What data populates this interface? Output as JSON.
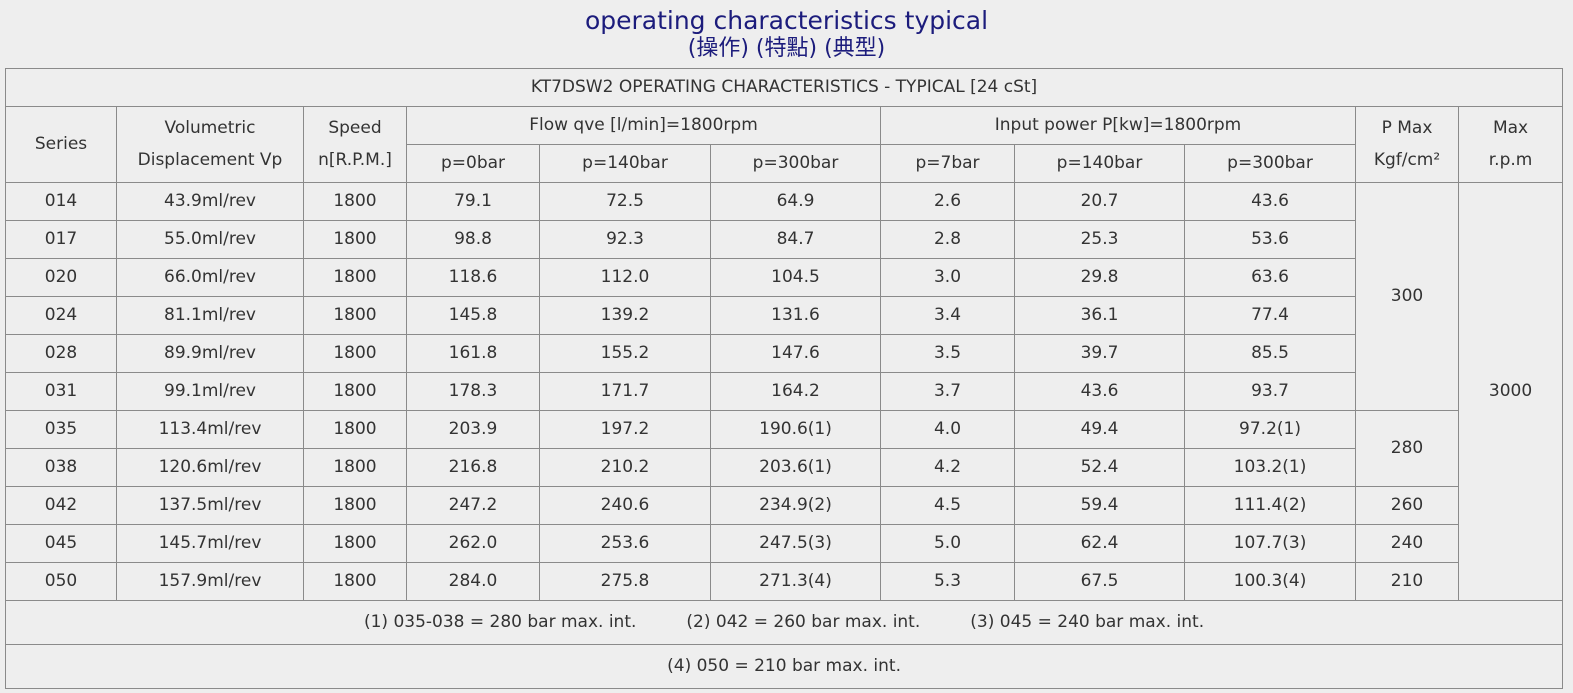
{
  "header": {
    "title": "operating characteristics typical",
    "subtitle": "(操作) (特點) (典型)"
  },
  "table": {
    "caption": "KT7DSW2 OPERATING CHARACTERISTICS - TYPICAL [24 cSt]",
    "headers": {
      "series": "Series",
      "displacement": [
        "Volumetric",
        "Displacement Vp"
      ],
      "speed": [
        "Speed",
        "n[R.P.M.]"
      ],
      "flow": "Flow qve [l/min]=1800rpm",
      "power": "Input power P[kw]=1800rpm",
      "p_max": [
        "P Max",
        "Kgf/cm²"
      ],
      "max_rpm": [
        "Max",
        "r.p.m"
      ],
      "flow_sub": [
        "p=0bar",
        "p=140bar",
        "p=300bar"
      ],
      "power_sub": [
        "p=7bar",
        "p=140bar",
        "p=300bar"
      ]
    },
    "rows": [
      [
        "014",
        "43.9ml/rev",
        "1800",
        "79.1",
        "72.5",
        "64.9",
        "2.6",
        "20.7",
        "43.6"
      ],
      [
        "017",
        "55.0ml/rev",
        "1800",
        "98.8",
        "92.3",
        "84.7",
        "2.8",
        "25.3",
        "53.6"
      ],
      [
        "020",
        "66.0ml/rev",
        "1800",
        "118.6",
        "112.0",
        "104.5",
        "3.0",
        "29.8",
        "63.6"
      ],
      [
        "024",
        "81.1ml/rev",
        "1800",
        "145.8",
        "139.2",
        "131.6",
        "3.4",
        "36.1",
        "77.4"
      ],
      [
        "028",
        "89.9ml/rev",
        "1800",
        "161.8",
        "155.2",
        "147.6",
        "3.5",
        "39.7",
        "85.5"
      ],
      [
        "031",
        "99.1ml/rev",
        "1800",
        "178.3",
        "171.7",
        "164.2",
        "3.7",
        "43.6",
        "93.7"
      ],
      [
        "035",
        "113.4ml/rev",
        "1800",
        "203.9",
        "197.2",
        "190.6(1)",
        "4.0",
        "49.4",
        "97.2(1)"
      ],
      [
        "038",
        "120.6ml/rev",
        "1800",
        "216.8",
        "210.2",
        "203.6(1)",
        "4.2",
        "52.4",
        "103.2(1)"
      ],
      [
        "042",
        "137.5ml/rev",
        "1800",
        "247.2",
        "240.6",
        "234.9(2)",
        "4.5",
        "59.4",
        "111.4(2)"
      ],
      [
        "045",
        "145.7ml/rev",
        "1800",
        "262.0",
        "253.6",
        "247.5(3)",
        "5.0",
        "62.4",
        "107.7(3)"
      ],
      [
        "050",
        "157.9ml/rev",
        "1800",
        "284.0",
        "275.8",
        "271.3(4)",
        "5.3",
        "67.5",
        "100.3(4)"
      ]
    ],
    "p_max": [
      {
        "text": "300",
        "span": 6
      },
      {
        "text": "280",
        "span": 2
      },
      {
        "text": "260",
        "span": 1
      },
      {
        "text": "240",
        "span": 1
      },
      {
        "text": "210",
        "span": 1
      }
    ],
    "max_rpm": {
      "text": "3000",
      "span": 11
    },
    "footnotes": [
      [
        "(1) 035-038 = 280 bar max. int.",
        "(2) 042 = 260 bar max. int.",
        "(3) 045 = 240 bar max. int."
      ],
      [
        "(4) 050 = 210 bar max. int."
      ]
    ]
  }
}
